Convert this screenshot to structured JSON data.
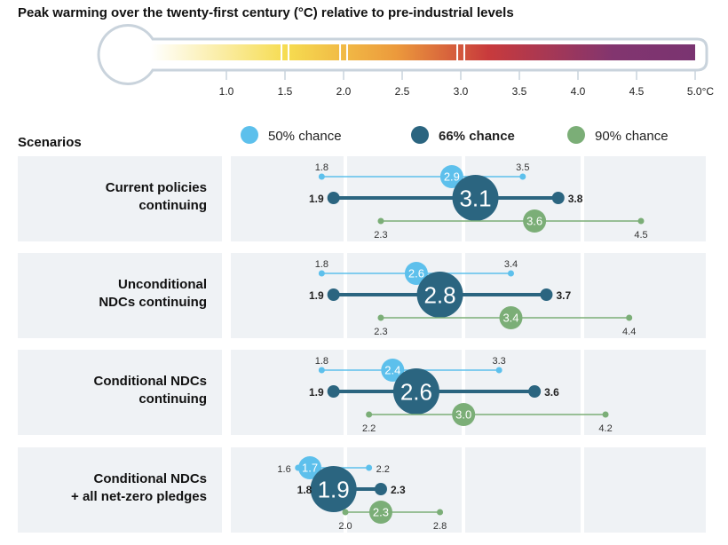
{
  "title": "Peak warming over the twenty-first century (°C) relative to pre-industrial levels",
  "scenarios_label": "Scenarios",
  "colors": {
    "p50": "#5dc0ec",
    "p66": "#2b6580",
    "p90": "#7bae77",
    "panel": "#eff2f5"
  },
  "chart_data": {
    "type": "dot-range",
    "title": "Peak warming over the twenty-first century (°C) relative to pre-industrial levels",
    "xlim": [
      1.0,
      5.0
    ],
    "x_ticks": [
      "1.0",
      "1.5",
      "2.0",
      "2.5",
      "3.0",
      "3.5",
      "4.0",
      "4.5",
      "5.0°C"
    ],
    "legend": [
      {
        "key": "p50",
        "label": "50% chance"
      },
      {
        "key": "p66",
        "label": "66% chance"
      },
      {
        "key": "p90",
        "label": "90% chance"
      }
    ],
    "scenarios": [
      {
        "name_lines": [
          "Current policies",
          "continuing"
        ],
        "p50": {
          "low": 1.8,
          "mid": 2.9,
          "high": 3.5
        },
        "p66": {
          "low": 1.9,
          "mid": 3.1,
          "high": 3.8
        },
        "p90": {
          "low": 2.3,
          "mid": 3.6,
          "high": 4.5
        }
      },
      {
        "name_lines": [
          "Unconditional",
          "NDCs continuing"
        ],
        "p50": {
          "low": 1.8,
          "mid": 2.6,
          "high": 3.4
        },
        "p66": {
          "low": 1.9,
          "mid": 2.8,
          "high": 3.7
        },
        "p90": {
          "low": 2.3,
          "mid": 3.4,
          "high": 4.4
        }
      },
      {
        "name_lines": [
          "Conditional NDCs",
          "continuing"
        ],
        "p50": {
          "low": 1.8,
          "mid": 2.4,
          "high": 3.3
        },
        "p66": {
          "low": 1.9,
          "mid": 2.6,
          "high": 3.6
        },
        "p90": {
          "low": 2.2,
          "mid": 3.0,
          "high": 4.2
        }
      },
      {
        "name_lines": [
          "Conditional NDCs",
          "+ all net-zero pledges"
        ],
        "p50": {
          "low": 1.6,
          "mid": 1.7,
          "high": 2.2
        },
        "p66": {
          "low": 1.8,
          "mid": 1.9,
          "high": 2.3
        },
        "p90": {
          "low": 2.0,
          "mid": 2.3,
          "high": 2.8
        }
      }
    ]
  }
}
